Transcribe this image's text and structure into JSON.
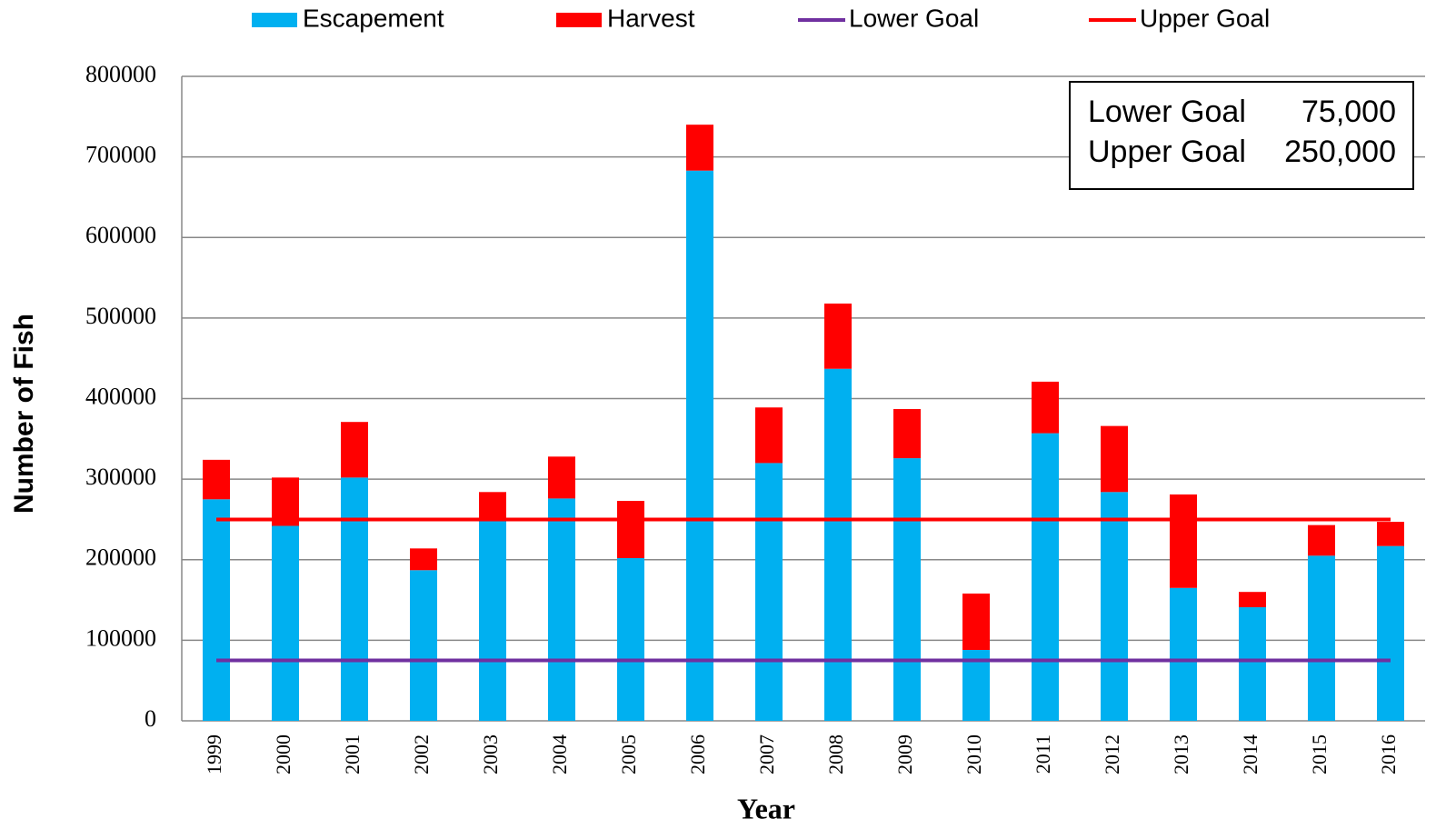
{
  "chart_data": {
    "type": "bar",
    "stacked": true,
    "x_label": "Year",
    "y_label": "Number of Fish",
    "categories": [
      "1999",
      "2000",
      "2001",
      "2002",
      "2003",
      "2004",
      "2005",
      "2006",
      "2007",
      "2008",
      "2009",
      "2010",
      "2011",
      "2012",
      "2013",
      "2014",
      "2015",
      "2016"
    ],
    "series": [
      {
        "name": "Escapement",
        "type": "bar",
        "color": "#00b0f0",
        "values": [
          275000,
          242000,
          302000,
          187000,
          249000,
          276000,
          202000,
          683000,
          320000,
          437000,
          326000,
          88000,
          357000,
          284000,
          165000,
          141000,
          205000,
          217000
        ]
      },
      {
        "name": "Harvest",
        "type": "bar",
        "color": "#ff0000",
        "values": [
          49000,
          60000,
          69000,
          27000,
          35000,
          52000,
          71000,
          57000,
          69000,
          81000,
          61000,
          70000,
          64000,
          82000,
          116000,
          19000,
          38000,
          30000
        ]
      },
      {
        "name": "Lower Goal",
        "type": "line",
        "color": "#7030a0",
        "values": [
          75000,
          75000,
          75000,
          75000,
          75000,
          75000,
          75000,
          75000,
          75000,
          75000,
          75000,
          75000,
          75000,
          75000,
          75000,
          75000,
          75000,
          75000
        ]
      },
      {
        "name": "Upper Goal",
        "type": "line",
        "color": "#ff0000",
        "values": [
          250000,
          250000,
          250000,
          250000,
          250000,
          250000,
          250000,
          250000,
          250000,
          250000,
          250000,
          250000,
          250000,
          250000,
          250000,
          250000,
          250000,
          250000
        ]
      }
    ],
    "goal_box": [
      {
        "value": 75000,
        "label": "75,000"
      },
      {
        "value": 250000,
        "label": "250,000"
      }
    ],
    "ylim": [
      0,
      800000
    ],
    "yticks": [
      0,
      100000,
      200000,
      300000,
      400000,
      500000,
      600000,
      700000,
      800000
    ],
    "grid": true,
    "legend": "top"
  }
}
